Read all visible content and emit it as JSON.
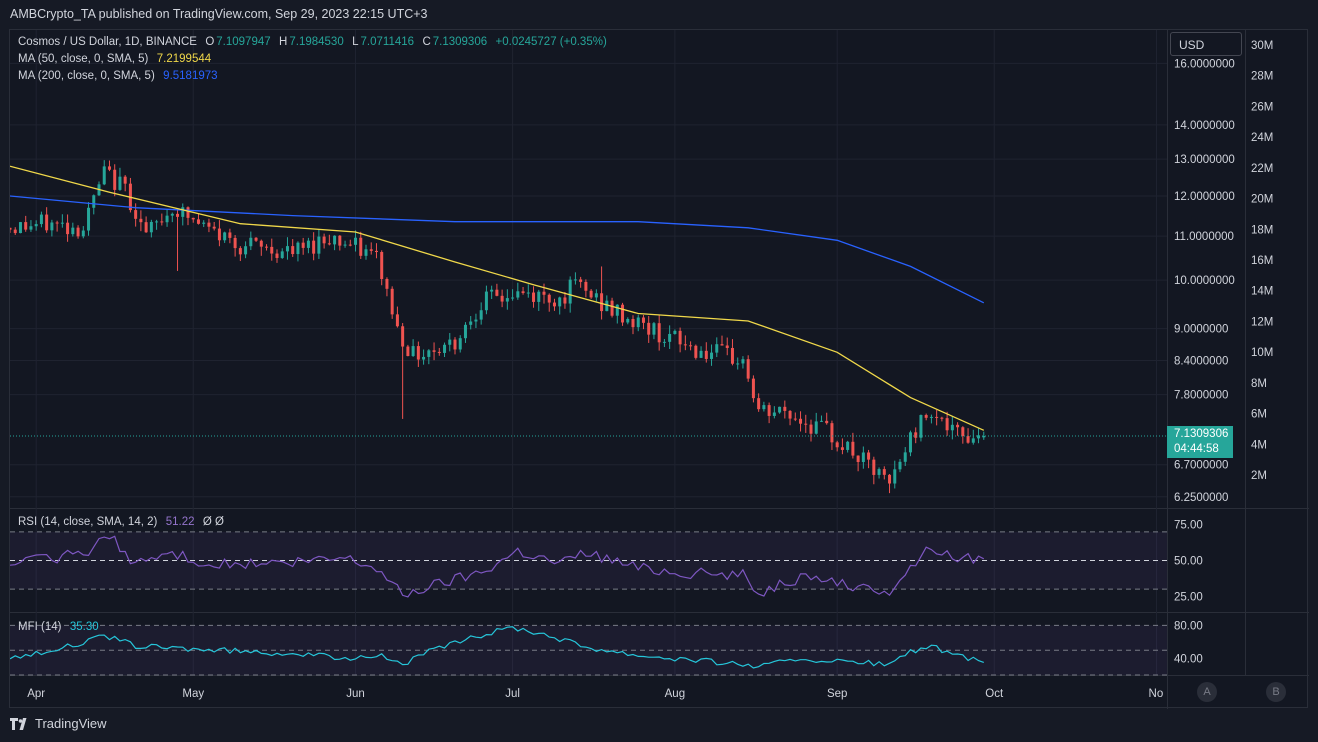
{
  "header": {
    "publisher_text": "AMBCrypto_TA published on TradingView.com, Sep 29, 2023 22:15 UTC+3"
  },
  "legend": {
    "symbol": "Cosmos / US Dollar, 1D, BINANCE",
    "o_key": "O",
    "o_val": "7.1097947",
    "h_key": "H",
    "h_val": "7.1984530",
    "l_key": "L",
    "l_val": "7.0711416",
    "c_key": "C",
    "c_val": "7.1309306",
    "change": "+0.0245727 (+0.35%)",
    "ma50_label": "MA (50, close, 0, SMA, 5)",
    "ma50_value": "7.2199544",
    "ma200_label": "MA (200, close, 0, SMA, 5)",
    "ma200_value": "9.5181973",
    "rsi_label": "RSI (14, close, SMA, 14, 2)",
    "rsi_value": "51.22",
    "rsi_extra": "Ø Ø",
    "mfi_label": "MFI (14)",
    "mfi_value": "35.30"
  },
  "currency_button": "USD",
  "current_price": {
    "price": "7.1309306",
    "countdown": "04:44:58"
  },
  "price_axis_labels": [
    "16.0000000",
    "14.0000000",
    "13.0000000",
    "12.0000000",
    "11.0000000",
    "10.0000000",
    "9.0000000",
    "8.4000000",
    "7.8000000",
    "6.7000000",
    "6.2500000"
  ],
  "volume_axis_labels": [
    "30M",
    "28M",
    "26M",
    "24M",
    "22M",
    "20M",
    "18M",
    "16M",
    "14M",
    "12M",
    "10M",
    "8M",
    "6M",
    "4M",
    "2M"
  ],
  "rsi_axis_labels": [
    "75.00",
    "50.00",
    "25.00"
  ],
  "mfi_axis_labels": [
    "80.00",
    "40.00"
  ],
  "time_axis_labels": [
    "Apr",
    "May",
    "Jun",
    "Jul",
    "Aug",
    "Sep",
    "Oct",
    "No"
  ],
  "scale_buttons": [
    "A",
    "B"
  ],
  "footer_brand": "TradingView",
  "colors": {
    "up": "#26a69a",
    "down": "#ef5350",
    "ma50": "#f0d84a",
    "ma200": "#2962ff",
    "rsi": "#7e57c2",
    "mfi": "#26c6da",
    "background": "#131722",
    "grid": "#1f2330"
  },
  "chart_data": [
    {
      "type": "candlestick",
      "title": "Cosmos / US Dollar, 1D, BINANCE",
      "y_scale": "log",
      "ylim": [
        6.1,
        17.2
      ],
      "x_range": [
        "2023-03-27",
        "2023-11-03"
      ],
      "x_ticks": [
        "Apr",
        "May",
        "Jun",
        "Jul",
        "Aug",
        "Sep",
        "Oct",
        "No"
      ],
      "waypoints_close": [
        [
          "2023-03-27",
          11.2
        ],
        [
          "2023-04-03",
          11.3
        ],
        [
          "2023-04-10",
          11.2
        ],
        [
          "2023-04-14",
          12.6
        ],
        [
          "2023-04-18",
          12.2
        ],
        [
          "2023-04-22",
          11.0
        ],
        [
          "2023-04-27",
          11.7
        ],
        [
          "2023-05-03",
          11.2
        ],
        [
          "2023-05-10",
          10.8
        ],
        [
          "2023-05-20",
          10.6
        ],
        [
          "2023-05-27",
          11.0
        ],
        [
          "2023-06-05",
          10.5
        ],
        [
          "2023-06-09",
          9.0
        ],
        [
          "2023-06-12",
          8.5
        ],
        [
          "2023-06-20",
          8.75
        ],
        [
          "2023-06-25",
          9.55
        ],
        [
          "2023-07-02",
          9.7
        ],
        [
          "2023-07-10",
          9.6
        ],
        [
          "2023-07-13",
          9.9
        ],
        [
          "2023-07-20",
          9.35
        ],
        [
          "2023-07-27",
          9.0
        ],
        [
          "2023-08-05",
          8.6
        ],
        [
          "2023-08-14",
          8.4
        ],
        [
          "2023-08-17",
          7.5
        ],
        [
          "2023-08-22",
          7.5
        ],
        [
          "2023-08-30",
          7.2
        ],
        [
          "2023-09-05",
          6.8
        ],
        [
          "2023-09-11",
          6.4
        ],
        [
          "2023-09-15",
          7.1
        ],
        [
          "2023-09-19",
          7.6
        ],
        [
          "2023-09-23",
          7.15
        ],
        [
          "2023-09-29",
          7.13
        ]
      ],
      "ma50": [
        [
          "2023-03-27",
          12.8
        ],
        [
          "2023-04-15",
          12.1
        ],
        [
          "2023-05-10",
          11.3
        ],
        [
          "2023-06-01",
          11.1
        ],
        [
          "2023-06-20",
          10.4
        ],
        [
          "2023-07-05",
          9.9
        ],
        [
          "2023-07-25",
          9.3
        ],
        [
          "2023-08-15",
          9.15
        ],
        [
          "2023-09-01",
          8.55
        ],
        [
          "2023-09-15",
          7.75
        ],
        [
          "2023-09-29",
          7.22
        ]
      ],
      "ma200": [
        [
          "2023-03-27",
          12.0
        ],
        [
          "2023-04-20",
          11.7
        ],
        [
          "2023-05-20",
          11.5
        ],
        [
          "2023-06-20",
          11.35
        ],
        [
          "2023-07-25",
          11.35
        ],
        [
          "2023-08-15",
          11.2
        ],
        [
          "2023-09-01",
          10.9
        ],
        [
          "2023-09-15",
          10.3
        ],
        [
          "2023-09-29",
          9.52
        ]
      ],
      "last_price": 7.1309306,
      "volume_axis": {
        "ticks": [
          "2M",
          "4M",
          "6M",
          "8M",
          "10M",
          "12M",
          "14M",
          "16M",
          "18M",
          "20M",
          "22M",
          "24M",
          "26M",
          "28M",
          "30M"
        ]
      }
    },
    {
      "type": "line",
      "title": "RSI (14, close, SMA, 14, 2)",
      "ylim": [
        14,
        86
      ],
      "bands": [
        30,
        50,
        70
      ],
      "y_ticks": [
        75,
        50,
        25
      ],
      "waypoints": [
        [
          "2023-03-27",
          48
        ],
        [
          "2023-04-05",
          52
        ],
        [
          "2023-04-10",
          55
        ],
        [
          "2023-04-15",
          67
        ],
        [
          "2023-04-20",
          48
        ],
        [
          "2023-04-27",
          55
        ],
        [
          "2023-05-05",
          47
        ],
        [
          "2023-05-20",
          48
        ],
        [
          "2023-05-30",
          52
        ],
        [
          "2023-06-05",
          45
        ],
        [
          "2023-06-10",
          26
        ],
        [
          "2023-06-15",
          32
        ],
        [
          "2023-06-25",
          42
        ],
        [
          "2023-07-02",
          57
        ],
        [
          "2023-07-10",
          48
        ],
        [
          "2023-07-15",
          56
        ],
        [
          "2023-07-25",
          45
        ],
        [
          "2023-08-05",
          41
        ],
        [
          "2023-08-14",
          40
        ],
        [
          "2023-08-17",
          27
        ],
        [
          "2023-08-22",
          36
        ],
        [
          "2023-08-30",
          38
        ],
        [
          "2023-09-05",
          30
        ],
        [
          "2023-09-11",
          29
        ],
        [
          "2023-09-15",
          45
        ],
        [
          "2023-09-19",
          60
        ],
        [
          "2023-09-23",
          52
        ],
        [
          "2023-09-29",
          51.22
        ]
      ],
      "last_value": 51.22
    },
    {
      "type": "line",
      "title": "MFI (14)",
      "ylim": [
        20,
        95
      ],
      "bands": [
        20,
        50,
        80
      ],
      "y_ticks": [
        80,
        40
      ],
      "waypoints": [
        [
          "2023-03-27",
          40
        ],
        [
          "2023-04-05",
          52
        ],
        [
          "2023-04-10",
          58
        ],
        [
          "2023-04-14",
          68
        ],
        [
          "2023-04-20",
          55
        ],
        [
          "2023-05-05",
          50
        ],
        [
          "2023-05-20",
          46
        ],
        [
          "2023-05-30",
          40
        ],
        [
          "2023-06-05",
          45
        ],
        [
          "2023-06-10",
          33
        ],
        [
          "2023-06-15",
          48
        ],
        [
          "2023-06-25",
          68
        ],
        [
          "2023-07-01",
          78
        ],
        [
          "2023-07-08",
          68
        ],
        [
          "2023-07-15",
          54
        ],
        [
          "2023-07-25",
          44
        ],
        [
          "2023-08-05",
          38
        ],
        [
          "2023-08-14",
          33
        ],
        [
          "2023-08-17",
          30
        ],
        [
          "2023-08-25",
          40
        ],
        [
          "2023-09-01",
          36
        ],
        [
          "2023-09-05",
          35
        ],
        [
          "2023-09-11",
          33
        ],
        [
          "2023-09-15",
          48
        ],
        [
          "2023-09-19",
          55
        ],
        [
          "2023-09-23",
          44
        ],
        [
          "2023-09-29",
          35.3
        ]
      ],
      "last_value": 35.3
    }
  ]
}
